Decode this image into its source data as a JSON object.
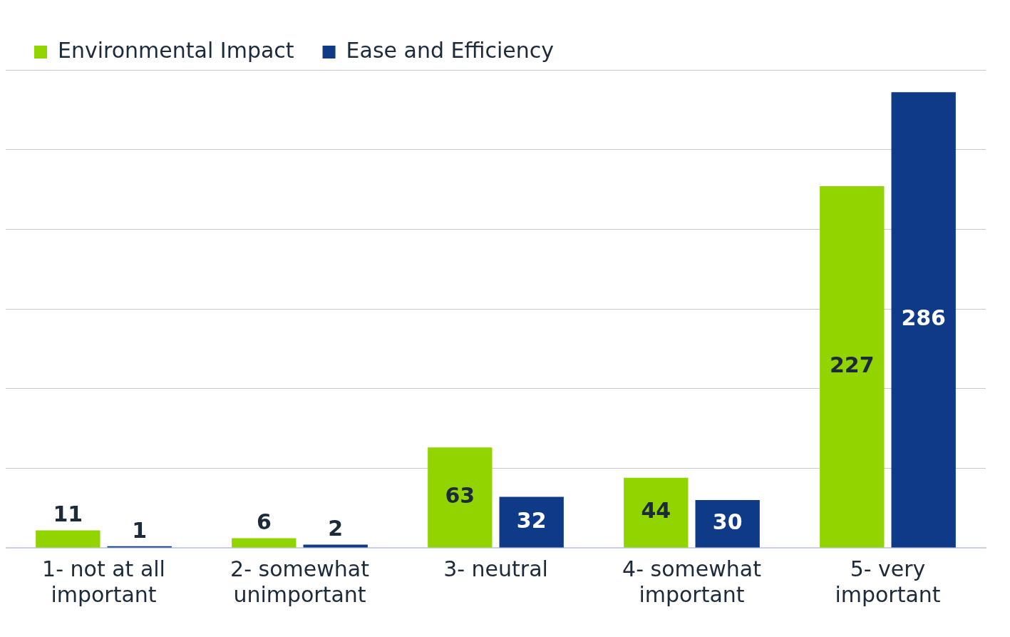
{
  "chart_data": {
    "type": "bar",
    "categories": [
      "1- not at all important",
      "2- somewhat unimportant",
      "3- neutral",
      "4- somewhat important",
      "5- very important"
    ],
    "series": [
      {
        "name": "Environmental Impact",
        "color": "#92d400",
        "values": [
          11,
          6,
          63,
          44,
          227
        ]
      },
      {
        "name": "Ease and Efficiency",
        "color": "#0f3a87",
        "values": [
          1,
          2,
          32,
          30,
          286
        ]
      }
    ],
    "ylim": [
      0,
      300
    ],
    "yticks": [
      {
        "value": 0,
        "label": null
      },
      {
        "value": 50,
        "label": null
      },
      {
        "value": 100,
        "label": null
      },
      {
        "value": 150,
        "label": null
      },
      {
        "value": 200,
        "label": null
      },
      {
        "value": 250,
        "label": null
      },
      {
        "value": 300,
        "label": null
      }
    ],
    "tick_labels": "x",
    "grid": "y",
    "legend": "top left",
    "data_labels": true
  }
}
